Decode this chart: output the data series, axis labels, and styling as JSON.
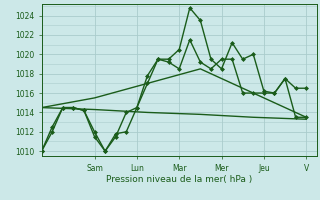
{
  "xlabel": "Pression niveau de la mer( hPa )",
  "bg_color": "#cce8e8",
  "grid_color": "#aacccc",
  "line_color": "#1a5c1a",
  "ylim": [
    1009.5,
    1025.2
  ],
  "yticks": [
    1010,
    1012,
    1014,
    1016,
    1018,
    1020,
    1022,
    1024
  ],
  "xlim": [
    0,
    13.0
  ],
  "day_labels": [
    "Sam",
    "Lun",
    "Mar",
    "Mer",
    "Jeu",
    "V"
  ],
  "day_positions": [
    2.5,
    4.5,
    6.5,
    8.5,
    10.5,
    12.5
  ],
  "series": [
    {
      "x": [
        0.0,
        0.5,
        1.0,
        1.5,
        2.0,
        2.5,
        3.0,
        3.5,
        4.0,
        4.5,
        5.0,
        5.5,
        6.0,
        6.5,
        7.0,
        7.5,
        8.0,
        8.5,
        9.0,
        9.5,
        10.0,
        10.5,
        11.0,
        11.5,
        12.0,
        12.5
      ],
      "y": [
        1010.0,
        1012.5,
        1014.5,
        1014.5,
        1014.2,
        1011.5,
        1010.0,
        1011.8,
        1012.0,
        1014.5,
        1017.8,
        1019.5,
        1019.5,
        1020.5,
        1024.8,
        1023.5,
        1019.5,
        1018.5,
        1021.2,
        1019.5,
        1020.0,
        1016.2,
        1016.0,
        1017.5,
        1016.5,
        1016.5
      ],
      "marker": "D",
      "markersize": 2.0,
      "linewidth": 1.0,
      "zorder": 4
    },
    {
      "x": [
        0.0,
        2.5,
        5.0,
        7.5,
        10.0,
        12.5
      ],
      "y": [
        1014.5,
        1014.3,
        1014.0,
        1013.8,
        1013.5,
        1013.3
      ],
      "marker": null,
      "markersize": 0,
      "linewidth": 1.0,
      "zorder": 2
    },
    {
      "x": [
        0.0,
        2.5,
        5.0,
        7.5,
        10.0,
        12.5
      ],
      "y": [
        1014.5,
        1015.5,
        1017.0,
        1018.5,
        1016.0,
        1013.5
      ],
      "marker": null,
      "markersize": 0,
      "linewidth": 1.0,
      "zorder": 2
    },
    {
      "x": [
        0.0,
        0.5,
        1.0,
        1.5,
        2.0,
        2.5,
        3.0,
        3.5,
        4.0,
        4.5,
        5.0,
        5.5,
        6.0,
        6.5,
        7.0,
        7.5,
        8.0,
        8.5,
        9.0,
        9.5,
        10.0,
        10.5,
        11.0,
        11.5,
        12.0,
        12.5
      ],
      "y": [
        1010.0,
        1012.0,
        1014.5,
        1014.5,
        1014.2,
        1012.0,
        1010.0,
        1011.5,
        1014.0,
        1014.5,
        1017.0,
        1019.5,
        1019.2,
        1018.5,
        1021.5,
        1019.2,
        1018.5,
        1019.5,
        1019.5,
        1016.0,
        1016.0,
        1016.0,
        1016.0,
        1017.5,
        1013.5,
        1013.5
      ],
      "marker": "D",
      "markersize": 2.0,
      "linewidth": 1.0,
      "zorder": 3
    }
  ]
}
